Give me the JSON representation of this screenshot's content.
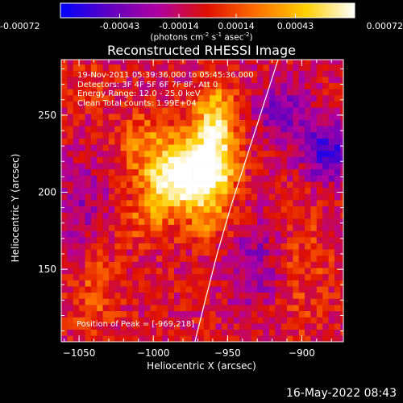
{
  "chart_data": {
    "type": "heatmap",
    "title": "Reconstructed RHESSI Image",
    "xlabel": "Heliocentric X (arcsec)",
    "ylabel": "Heliocentric Y (arcsec)",
    "xlim": [
      -1062,
      -872
    ],
    "ylim": [
      103,
      286
    ],
    "xticks": [
      -1050,
      -1000,
      -950,
      -900
    ],
    "yticks": [
      150,
      200,
      250
    ],
    "colorbar": {
      "ticks": [
        "-0.00072",
        "-0.00043",
        "-0.00014",
        "0.00014",
        "0.00043",
        "0.00072"
      ],
      "tick_values": [
        -0.00072,
        -0.00043,
        -0.00014,
        0.00014,
        0.00043,
        0.00072
      ],
      "range": [
        -0.00072,
        0.00072
      ],
      "unit_parts": [
        "(photons cm",
        "-2",
        " s",
        "-1",
        " asec",
        "-2",
        ")"
      ]
    },
    "colormap": [
      "#0000ff",
      "#6000c0",
      "#b000a0",
      "#e01000",
      "#ff7000",
      "#ffd000",
      "#ffffff"
    ],
    "annotations": [
      "19-Nov-2011 05:39:36.000 to 05:45:36.000",
      "Detectors: 3F 4F 5F 6F 7F 8F, Att 0",
      "Energy Range: 12.0 - 25.0 keV",
      "Clean     Total counts: 1.99E+04"
    ],
    "peak_label": "Position of Peak = [-969,218]",
    "peak": [
      -969,
      218
    ],
    "limb_curve": [
      [
        -972,
        103
      ],
      [
        -965,
        130
      ],
      [
        -957,
        160
      ],
      [
        -948,
        190
      ],
      [
        -938,
        220
      ],
      [
        -928,
        250
      ],
      [
        -918,
        280
      ],
      [
        -916,
        286
      ]
    ],
    "bright_region": [
      {
        "x": -975,
        "y": 215,
        "amp": 0.00072,
        "sx": 14,
        "sy": 16
      },
      {
        "x": -990,
        "y": 205,
        "amp": 0.00052,
        "sx": 16,
        "sy": 12
      },
      {
        "x": -958,
        "y": 222,
        "amp": 0.00048,
        "sx": 10,
        "sy": 20
      },
      {
        "x": -960,
        "y": 252,
        "amp": 0.0004,
        "sx": 9,
        "sy": 14
      },
      {
        "x": -1008,
        "y": 232,
        "amp": 0.0003,
        "sx": 12,
        "sy": 14
      },
      {
        "x": -1005,
        "y": 180,
        "amp": 0.00028,
        "sx": 14,
        "sy": 10
      },
      {
        "x": -965,
        "y": 180,
        "amp": 0.00026,
        "sx": 10,
        "sy": 12
      },
      {
        "x": -1040,
        "y": 135,
        "amp": 0.00022,
        "sx": 12,
        "sy": 20
      },
      {
        "x": -905,
        "y": 150,
        "amp": 0.00018,
        "sx": 16,
        "sy": 30
      },
      {
        "x": -1045,
        "y": 265,
        "amp": 0.00016,
        "sx": 10,
        "sy": 10
      }
    ],
    "negative_regions": [
      {
        "x": -885,
        "y": 225,
        "amp": -0.0005,
        "sx": 12,
        "sy": 14
      },
      {
        "x": -915,
        "y": 250,
        "amp": -0.0003,
        "sx": 14,
        "sy": 14
      },
      {
        "x": -930,
        "y": 150,
        "amp": -0.00028,
        "sx": 14,
        "sy": 22
      },
      {
        "x": -1050,
        "y": 190,
        "amp": -0.0002,
        "sx": 14,
        "sy": 24
      }
    ]
  },
  "timestamp": "16-May-2022 08:43"
}
